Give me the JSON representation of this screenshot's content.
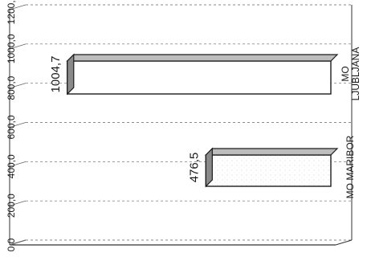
{
  "chart_data": {
    "type": "bar",
    "orientation": "horizontal",
    "three_d": true,
    "categories": [
      "MO MARIBOR",
      "MO LJUBLJANA"
    ],
    "category_lines": [
      [
        "MO MARIBOR"
      ],
      [
        "MO",
        "LJUBLJANA"
      ]
    ],
    "values": [
      476.5,
      1004.7
    ],
    "value_labels": [
      "476,5",
      "1004,7"
    ],
    "ticks": [
      0,
      200,
      400,
      600,
      800,
      1000,
      1200
    ],
    "tick_labels": [
      "0,0",
      "200,0",
      "400,0",
      "600,0",
      "800,0",
      "1000,0",
      "1200,0"
    ],
    "xlim": [
      0,
      1200
    ],
    "grid": true,
    "title": "",
    "xlabel": "",
    "ylabel": "",
    "colors": {
      "bar_face": "#ffffff",
      "bar_top": "#bdbdbd",
      "bar_side": "#8a8a8a",
      "bar_outline": "#1c1c1c",
      "grid": "#666666"
    }
  }
}
